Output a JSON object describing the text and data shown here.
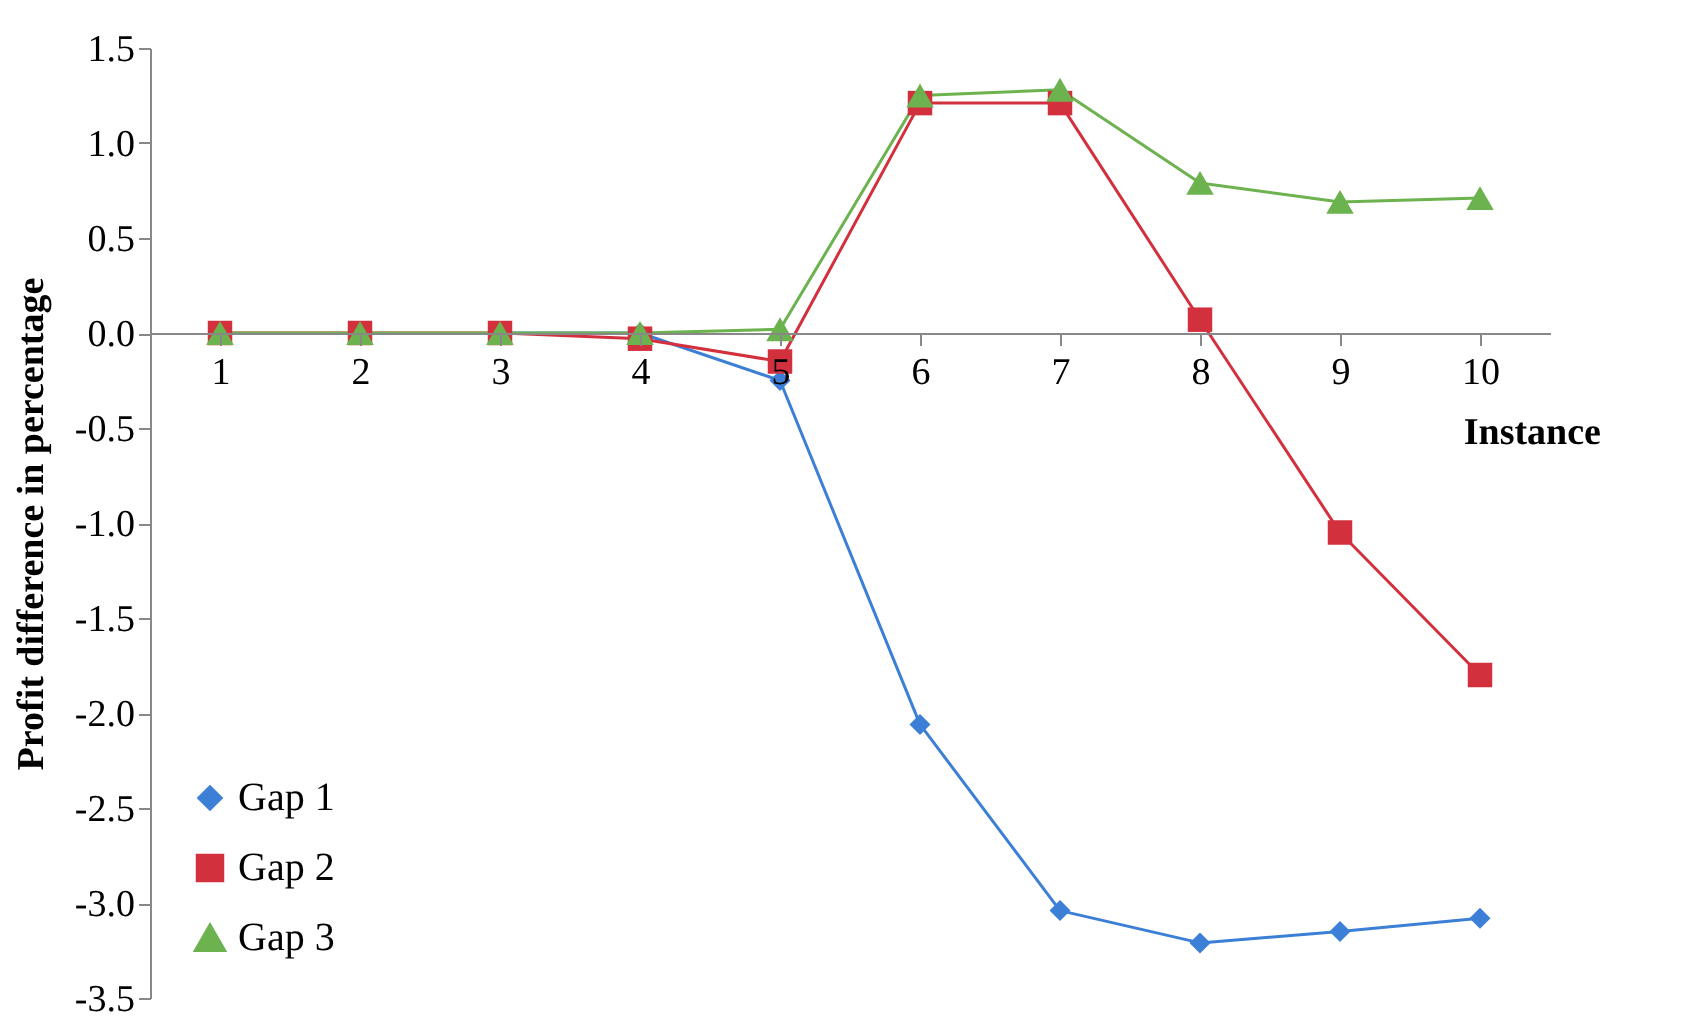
{
  "chart_data": {
    "type": "line",
    "xlabel": "Instance",
    "ylabel": "Profit difference in percentage",
    "categories": [
      "1",
      "2",
      "3",
      "4",
      "5",
      "6",
      "7",
      "8",
      "9",
      "10"
    ],
    "series": [
      {
        "name": "Gap 1",
        "color": "#3c7fd6",
        "marker": "diamond",
        "values": [
          null,
          null,
          0,
          0,
          -0.25,
          -2.06,
          -3.04,
          -3.21,
          -3.15,
          -3.08
        ]
      },
      {
        "name": "Gap 2",
        "color": "#d3303e",
        "marker": "square",
        "values": [
          0,
          0,
          0,
          -0.03,
          -0.15,
          1.21,
          1.21,
          0.07,
          -1.05,
          -1.8
        ]
      },
      {
        "name": "Gap 3",
        "color": "#6cb24e",
        "marker": "triangle",
        "values": [
          0,
          0,
          0,
          0,
          0.02,
          1.25,
          1.28,
          0.79,
          0.69,
          0.71
        ]
      }
    ],
    "ylim": [
      -3.5,
      1.5
    ],
    "yticks": [
      {
        "value": -3.5,
        "label": "-3.5"
      },
      {
        "value": -3.0,
        "label": "-3.0"
      },
      {
        "value": -2.5,
        "label": "-2.5"
      },
      {
        "value": -2.0,
        "label": "-2.0"
      },
      {
        "value": -1.5,
        "label": "-1.5"
      },
      {
        "value": -1.0,
        "label": "-1.0"
      },
      {
        "value": -0.5,
        "label": "-0.5"
      },
      {
        "value": 0,
        "label": "0.0"
      },
      {
        "value": 0.5,
        "label": "0.5"
      },
      {
        "value": 1.0,
        "label": "1.0"
      },
      {
        "value": 1.5,
        "label": "1.5"
      }
    ],
    "grid": false,
    "legend": "bottom left",
    "line_style": "solid"
  }
}
